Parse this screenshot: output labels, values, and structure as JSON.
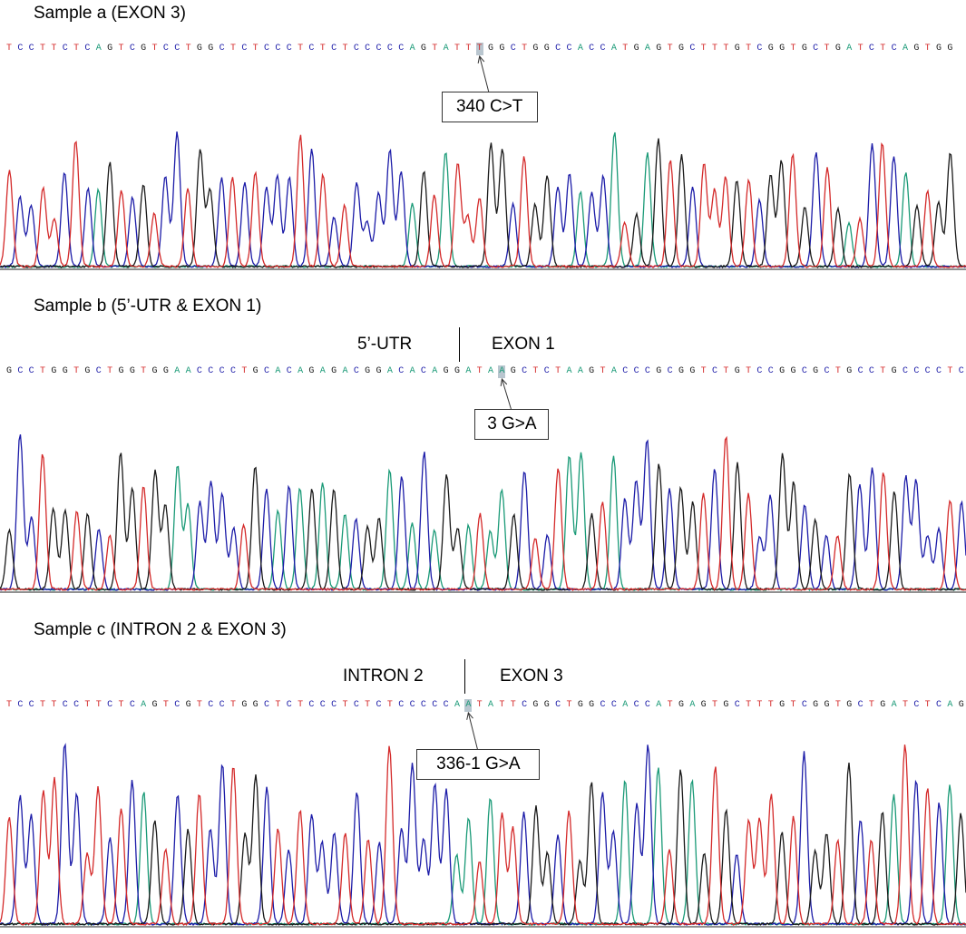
{
  "colors": {
    "A": "#1a9a77",
    "C": "#1c1ca8",
    "G": "#1a1a1a",
    "T": "#d42a2a",
    "highlight": "#b9c6cf"
  },
  "panels": [
    {
      "title": "Sample a (EXON 3)",
      "sequence": "TCCTTCTCAGTCGTCCTGGCTCTCCCTCTCTCCCCCAGTATTTGGCTGGCCACCATGAGTGCTTTGTCGGTGCTGATCTCAGTGG",
      "highlight_index": 42,
      "mutation_label": "340 C>T",
      "region_left": "",
      "region_right": ""
    },
    {
      "title": "Sample b (5’-UTR & EXON 1)",
      "sequence": "GCCTGGTGCTGGTGGAACCCCTGCACAGAGACGGACACAGGATAAGCTCTAAGTACCCGCGGTCTGTCCGGCGCTGCCTGCCCCTC",
      "highlight_index": 44,
      "mutation_label": "3 G>A",
      "region_left": "5’-UTR",
      "region_right": "EXON 1"
    },
    {
      "title": "Sample c (INTRON 2 & EXON 3)",
      "sequence": "TCCTTCCTTCTCAGTCGTCCTGGCTCTCCCTCTCTCCCCCAATATTCGGCTGGCCACCATGAGTGCTTTGTCGGTGCTGATCTCAG",
      "highlight_index": 41,
      "mutation_label": "336-1 G>A",
      "region_left": "INTRON 2",
      "region_right": "EXON 3"
    }
  ]
}
